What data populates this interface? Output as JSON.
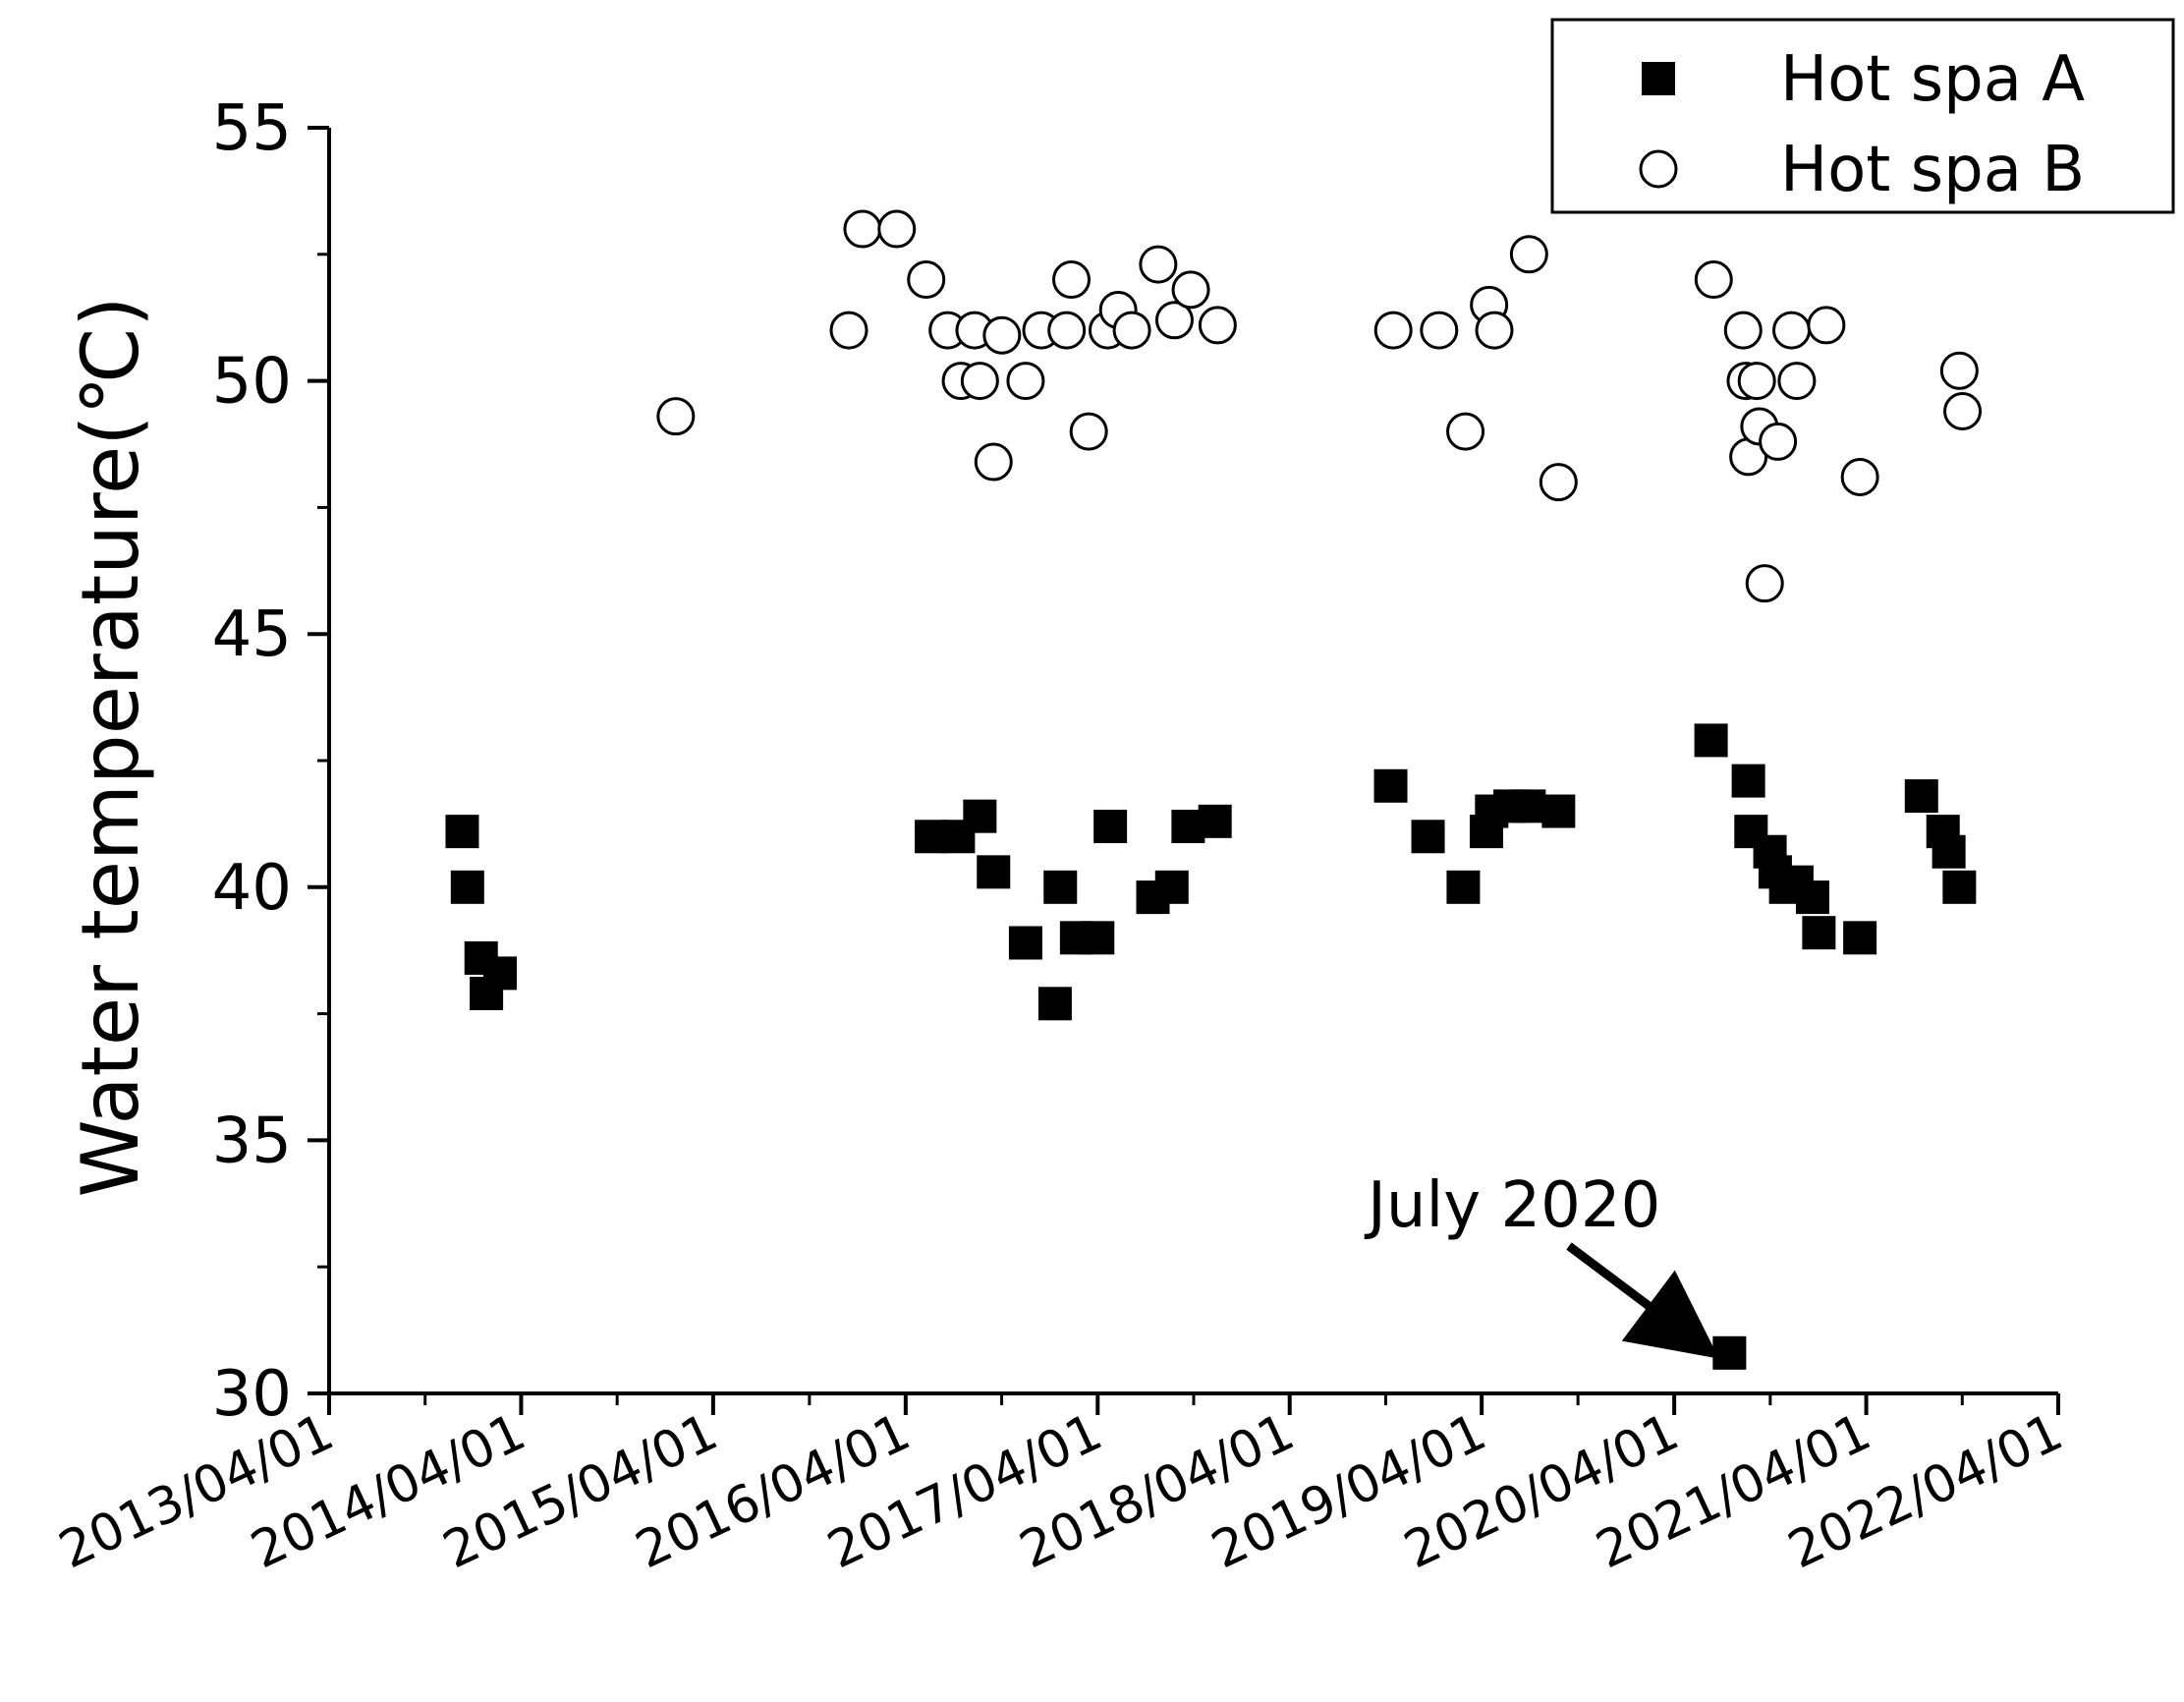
{
  "chart_data": {
    "type": "scatter",
    "title": "",
    "xlabel": "",
    "ylabel": "Water temperature(℃)",
    "ylim": [
      30,
      55
    ],
    "yticks": [
      30,
      35,
      40,
      45,
      50,
      55
    ],
    "xlim": [
      "2013-04-01",
      "2022-04-01"
    ],
    "xtick_labels": [
      "2013/04/01",
      "2014/04/01",
      "2015/04/01",
      "2016/04/01",
      "2017/04/01",
      "2018/04/01",
      "2019/04/01",
      "2020/04/01",
      "2021/04/01",
      "2022/04/01"
    ],
    "grid": false,
    "legend_position": "top-right",
    "series": [
      {
        "name": "Hot spa A",
        "marker": "filled-square",
        "color": "#000000",
        "points": [
          [
            "2013-12-10",
            41.1
          ],
          [
            "2013-12-20",
            40.0
          ],
          [
            "2014-01-15",
            38.6
          ],
          [
            "2014-01-25",
            37.9
          ],
          [
            "2014-02-20",
            38.3
          ],
          [
            "2016-05-20",
            41.0
          ],
          [
            "2016-07-10",
            41.0
          ],
          [
            "2016-08-20",
            41.4
          ],
          [
            "2016-09-15",
            40.3
          ],
          [
            "2016-11-15",
            38.9
          ],
          [
            "2017-01-10",
            37.7
          ],
          [
            "2017-01-20",
            40.0
          ],
          [
            "2017-02-20",
            39.0
          ],
          [
            "2017-04-01",
            39.0
          ],
          [
            "2017-04-25",
            41.2
          ],
          [
            "2017-07-15",
            39.8
          ],
          [
            "2017-08-20",
            40.0
          ],
          [
            "2017-09-20",
            41.2
          ],
          [
            "2017-11-10",
            41.3
          ],
          [
            "2018-10-10",
            42.0
          ],
          [
            "2018-12-20",
            41.0
          ],
          [
            "2019-02-25",
            40.0
          ],
          [
            "2019-04-10",
            41.1
          ],
          [
            "2019-04-20",
            41.5
          ],
          [
            "2019-05-25",
            41.6
          ],
          [
            "2019-06-30",
            41.6
          ],
          [
            "2019-08-25",
            41.5
          ],
          [
            "2020-06-10",
            42.9
          ],
          [
            "2020-07-15",
            30.8
          ],
          [
            "2020-08-20",
            42.1
          ],
          [
            "2020-08-25",
            41.1
          ],
          [
            "2020-09-30",
            40.7
          ],
          [
            "2020-10-10",
            40.3
          ],
          [
            "2020-10-30",
            40.0
          ],
          [
            "2020-11-20",
            40.1
          ],
          [
            "2020-12-20",
            39.8
          ],
          [
            "2021-01-01",
            39.1
          ],
          [
            "2021-03-20",
            39.0
          ],
          [
            "2021-07-15",
            41.8
          ],
          [
            "2021-08-25",
            41.1
          ],
          [
            "2021-09-05",
            40.7
          ],
          [
            "2021-09-25",
            40.0
          ]
        ]
      },
      {
        "name": "Hot spa B",
        "marker": "open-circle",
        "color": "#000000",
        "points": [
          [
            "2015-01-20",
            49.3
          ],
          [
            "2015-12-15",
            51.0
          ],
          [
            "2016-01-10",
            53.0
          ],
          [
            "2016-03-15",
            53.0
          ],
          [
            "2016-05-10",
            52.0
          ],
          [
            "2016-06-20",
            51.0
          ],
          [
            "2016-07-15",
            50.0
          ],
          [
            "2016-08-10",
            51.0
          ],
          [
            "2016-08-20",
            50.0
          ],
          [
            "2016-09-15",
            48.4
          ],
          [
            "2016-10-01",
            50.9
          ],
          [
            "2016-11-15",
            50.0
          ],
          [
            "2016-12-15",
            51.0
          ],
          [
            "2017-02-01",
            51.0
          ],
          [
            "2017-02-10",
            52.0
          ],
          [
            "2017-03-15",
            49.0
          ],
          [
            "2017-04-20",
            51.0
          ],
          [
            "2017-05-10",
            51.4
          ],
          [
            "2017-06-05",
            51.0
          ],
          [
            "2017-07-25",
            52.3
          ],
          [
            "2017-08-25",
            51.2
          ],
          [
            "2017-09-25",
            51.8
          ],
          [
            "2017-11-15",
            51.1
          ],
          [
            "2018-10-15",
            51.0
          ],
          [
            "2019-01-10",
            51.0
          ],
          [
            "2019-03-01",
            49.0
          ],
          [
            "2019-04-15",
            51.5
          ],
          [
            "2019-04-25",
            51.0
          ],
          [
            "2019-06-30",
            52.5
          ],
          [
            "2019-08-25",
            48.0
          ],
          [
            "2020-06-15",
            52.0
          ],
          [
            "2020-08-10",
            51.0
          ],
          [
            "2020-08-15",
            50.0
          ],
          [
            "2020-08-20",
            48.5
          ],
          [
            "2020-09-05",
            50.0
          ],
          [
            "2020-09-10",
            49.1
          ],
          [
            "2020-09-20",
            46.0
          ],
          [
            "2020-10-15",
            48.8
          ],
          [
            "2020-11-10",
            51.0
          ],
          [
            "2020-11-20",
            50.0
          ],
          [
            "2021-01-15",
            51.1
          ],
          [
            "2021-03-20",
            48.1
          ],
          [
            "2021-09-25",
            50.2
          ],
          [
            "2021-10-01",
            49.4
          ]
        ]
      }
    ],
    "annotations": [
      {
        "text": "July 2020",
        "target": [
          "2020-07-15",
          30.8
        ]
      }
    ]
  }
}
